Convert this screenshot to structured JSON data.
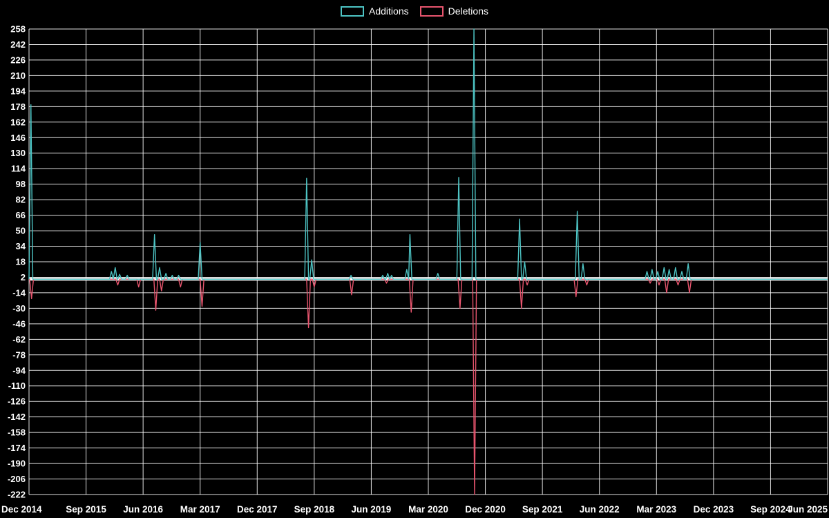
{
  "page": {
    "background_color": "#000000",
    "text_color": "#ffffff",
    "grid_color": "rgba(255,255,255,0.88)"
  },
  "legend": {
    "items": [
      {
        "label": "Additions",
        "color": "#4dc4c4"
      },
      {
        "label": "Deletions",
        "color": "#e8556e"
      }
    ]
  },
  "chart_data": {
    "type": "line",
    "title": "",
    "xlabel": "",
    "ylabel": "",
    "grid": true,
    "legend_position": "top-center",
    "x_axis": {
      "labels": [
        "Dec 2014",
        "Sep 2015",
        "Jun 2016",
        "Mar 2017",
        "Dec 2017",
        "Sep 2018",
        "Jun 2019",
        "Mar 2020",
        "Dec 2020",
        "Sep 2021",
        "Jun 2022",
        "Mar 2023",
        "Dec 2023",
        "Sep 2024",
        "Jun 2025"
      ],
      "positions_months": [
        0,
        9,
        18,
        27,
        36,
        45,
        54,
        63,
        72,
        81,
        90,
        99,
        108,
        117,
        126
      ],
      "domain_months": [
        0,
        126
      ]
    },
    "y_axis": {
      "min": -222,
      "max": 258,
      "tick_step": 16,
      "ticks": [
        258,
        242,
        226,
        210,
        194,
        178,
        162,
        146,
        130,
        114,
        98,
        82,
        66,
        50,
        34,
        18,
        2,
        -14,
        -30,
        -46,
        -62,
        -78,
        -94,
        -110,
        -126,
        -142,
        -158,
        -174,
        -190,
        -206,
        -222
      ]
    },
    "zero_baseline": 0,
    "spike_halfwidth_months": 0.3,
    "series": [
      {
        "name": "Additions",
        "color": "#4dc4c4",
        "baseline": 0,
        "spikes": [
          [
            0.3,
            180
          ],
          [
            13.0,
            8
          ],
          [
            13.6,
            12
          ],
          [
            14.3,
            5
          ],
          [
            15.5,
            4
          ],
          [
            19.8,
            46
          ],
          [
            20.6,
            12
          ],
          [
            21.6,
            6
          ],
          [
            22.6,
            4
          ],
          [
            23.6,
            4
          ],
          [
            27.0,
            38
          ],
          [
            43.8,
            104
          ],
          [
            44.6,
            20
          ],
          [
            50.8,
            4
          ],
          [
            55.8,
            4
          ],
          [
            56.6,
            6
          ],
          [
            57.2,
            4
          ],
          [
            59.6,
            10
          ],
          [
            60.1,
            46
          ],
          [
            64.5,
            6
          ],
          [
            67.8,
            105
          ],
          [
            70.2,
            258
          ],
          [
            77.4,
            62
          ],
          [
            78.2,
            18
          ],
          [
            86.5,
            70
          ],
          [
            87.4,
            16
          ],
          [
            97.5,
            8
          ],
          [
            98.3,
            10
          ],
          [
            99.2,
            8
          ],
          [
            100.2,
            12
          ],
          [
            101.0,
            10
          ],
          [
            102.0,
            12
          ],
          [
            103.0,
            8
          ],
          [
            104.0,
            16
          ]
        ]
      },
      {
        "name": "Deletions",
        "color": "#e8556e",
        "baseline": 0,
        "spikes": [
          [
            0.4,
            -20
          ],
          [
            14.0,
            -6
          ],
          [
            17.3,
            -8
          ],
          [
            20.0,
            -32
          ],
          [
            20.9,
            -12
          ],
          [
            23.9,
            -8
          ],
          [
            27.3,
            -28
          ],
          [
            44.1,
            -50
          ],
          [
            45.0,
            -8
          ],
          [
            50.9,
            -16
          ],
          [
            56.4,
            -4
          ],
          [
            60.3,
            -34
          ],
          [
            68.0,
            -30
          ],
          [
            70.3,
            -222
          ],
          [
            77.7,
            -30
          ],
          [
            78.6,
            -6
          ],
          [
            86.3,
            -18
          ],
          [
            88.0,
            -6
          ],
          [
            98.0,
            -4
          ],
          [
            99.4,
            -6
          ],
          [
            100.6,
            -14
          ],
          [
            102.4,
            -6
          ],
          [
            104.2,
            -14
          ]
        ]
      }
    ]
  }
}
